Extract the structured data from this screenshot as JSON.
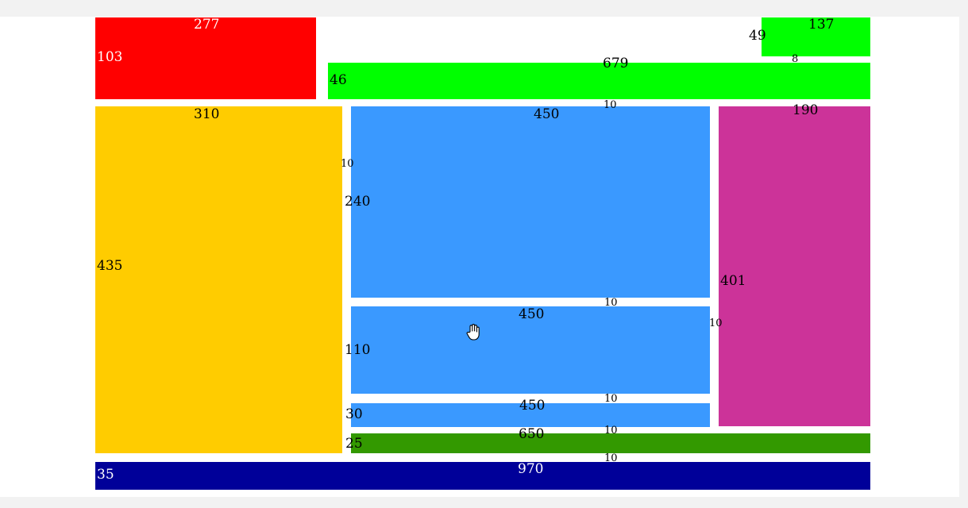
{
  "colors": {
    "red": "#ff0000",
    "lime": "#00ff00",
    "yellow": "#ffcc00",
    "blue": "#3a99ff",
    "magenta": "#cc3399",
    "green": "#339900",
    "navy": "#000099",
    "label_dark": "#000000",
    "label_light": "#ffffff"
  },
  "blocks": {
    "red": {
      "width": "277",
      "height": "103"
    },
    "lime_top": {
      "width": "137",
      "height": "49"
    },
    "lime_bar": {
      "width": "679",
      "height": "46"
    },
    "yellow": {
      "width": "310",
      "height": "435"
    },
    "blue_large": {
      "width": "450",
      "height": "240"
    },
    "blue_mid": {
      "width": "450",
      "height": "110"
    },
    "blue_small": {
      "width": "450",
      "height": "30"
    },
    "magenta": {
      "width": "190",
      "height": "401"
    },
    "green": {
      "width": "650",
      "height": "25"
    },
    "navy": {
      "width": "970",
      "height": "35"
    }
  },
  "gaps": {
    "lime_top_to_bar": "8",
    "bar_to_blue": "10",
    "yellow_to_blue": "10",
    "blue_large_to_mid": "10",
    "blue_to_magenta": "10",
    "blue_mid_to_small": "10",
    "blue_small_to_green": "10",
    "green_to_navy": "10"
  },
  "cursor": {
    "icon": "hand-cursor-icon"
  }
}
